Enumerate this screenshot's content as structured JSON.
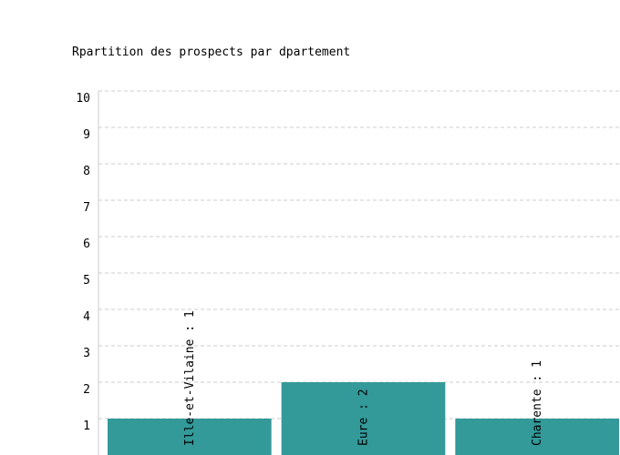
{
  "chart_data": {
    "type": "bar",
    "title": "Rpartition des prospects par dpartement",
    "categories": [
      "Ille-et-Vilaine",
      "Eure",
      "Charente"
    ],
    "values": [
      1,
      2,
      1
    ],
    "data_labels": [
      "Ille-et-Vilaine : 1",
      "Eure : 2",
      "Charente : 1"
    ],
    "xlabel": "",
    "ylabel": "",
    "ylim": [
      0,
      10
    ],
    "yticks": [
      1,
      2,
      3,
      4,
      5,
      6,
      7,
      8,
      9,
      10
    ],
    "grid": true,
    "bar_color": "#339999",
    "grid_color": "#cccccc"
  }
}
